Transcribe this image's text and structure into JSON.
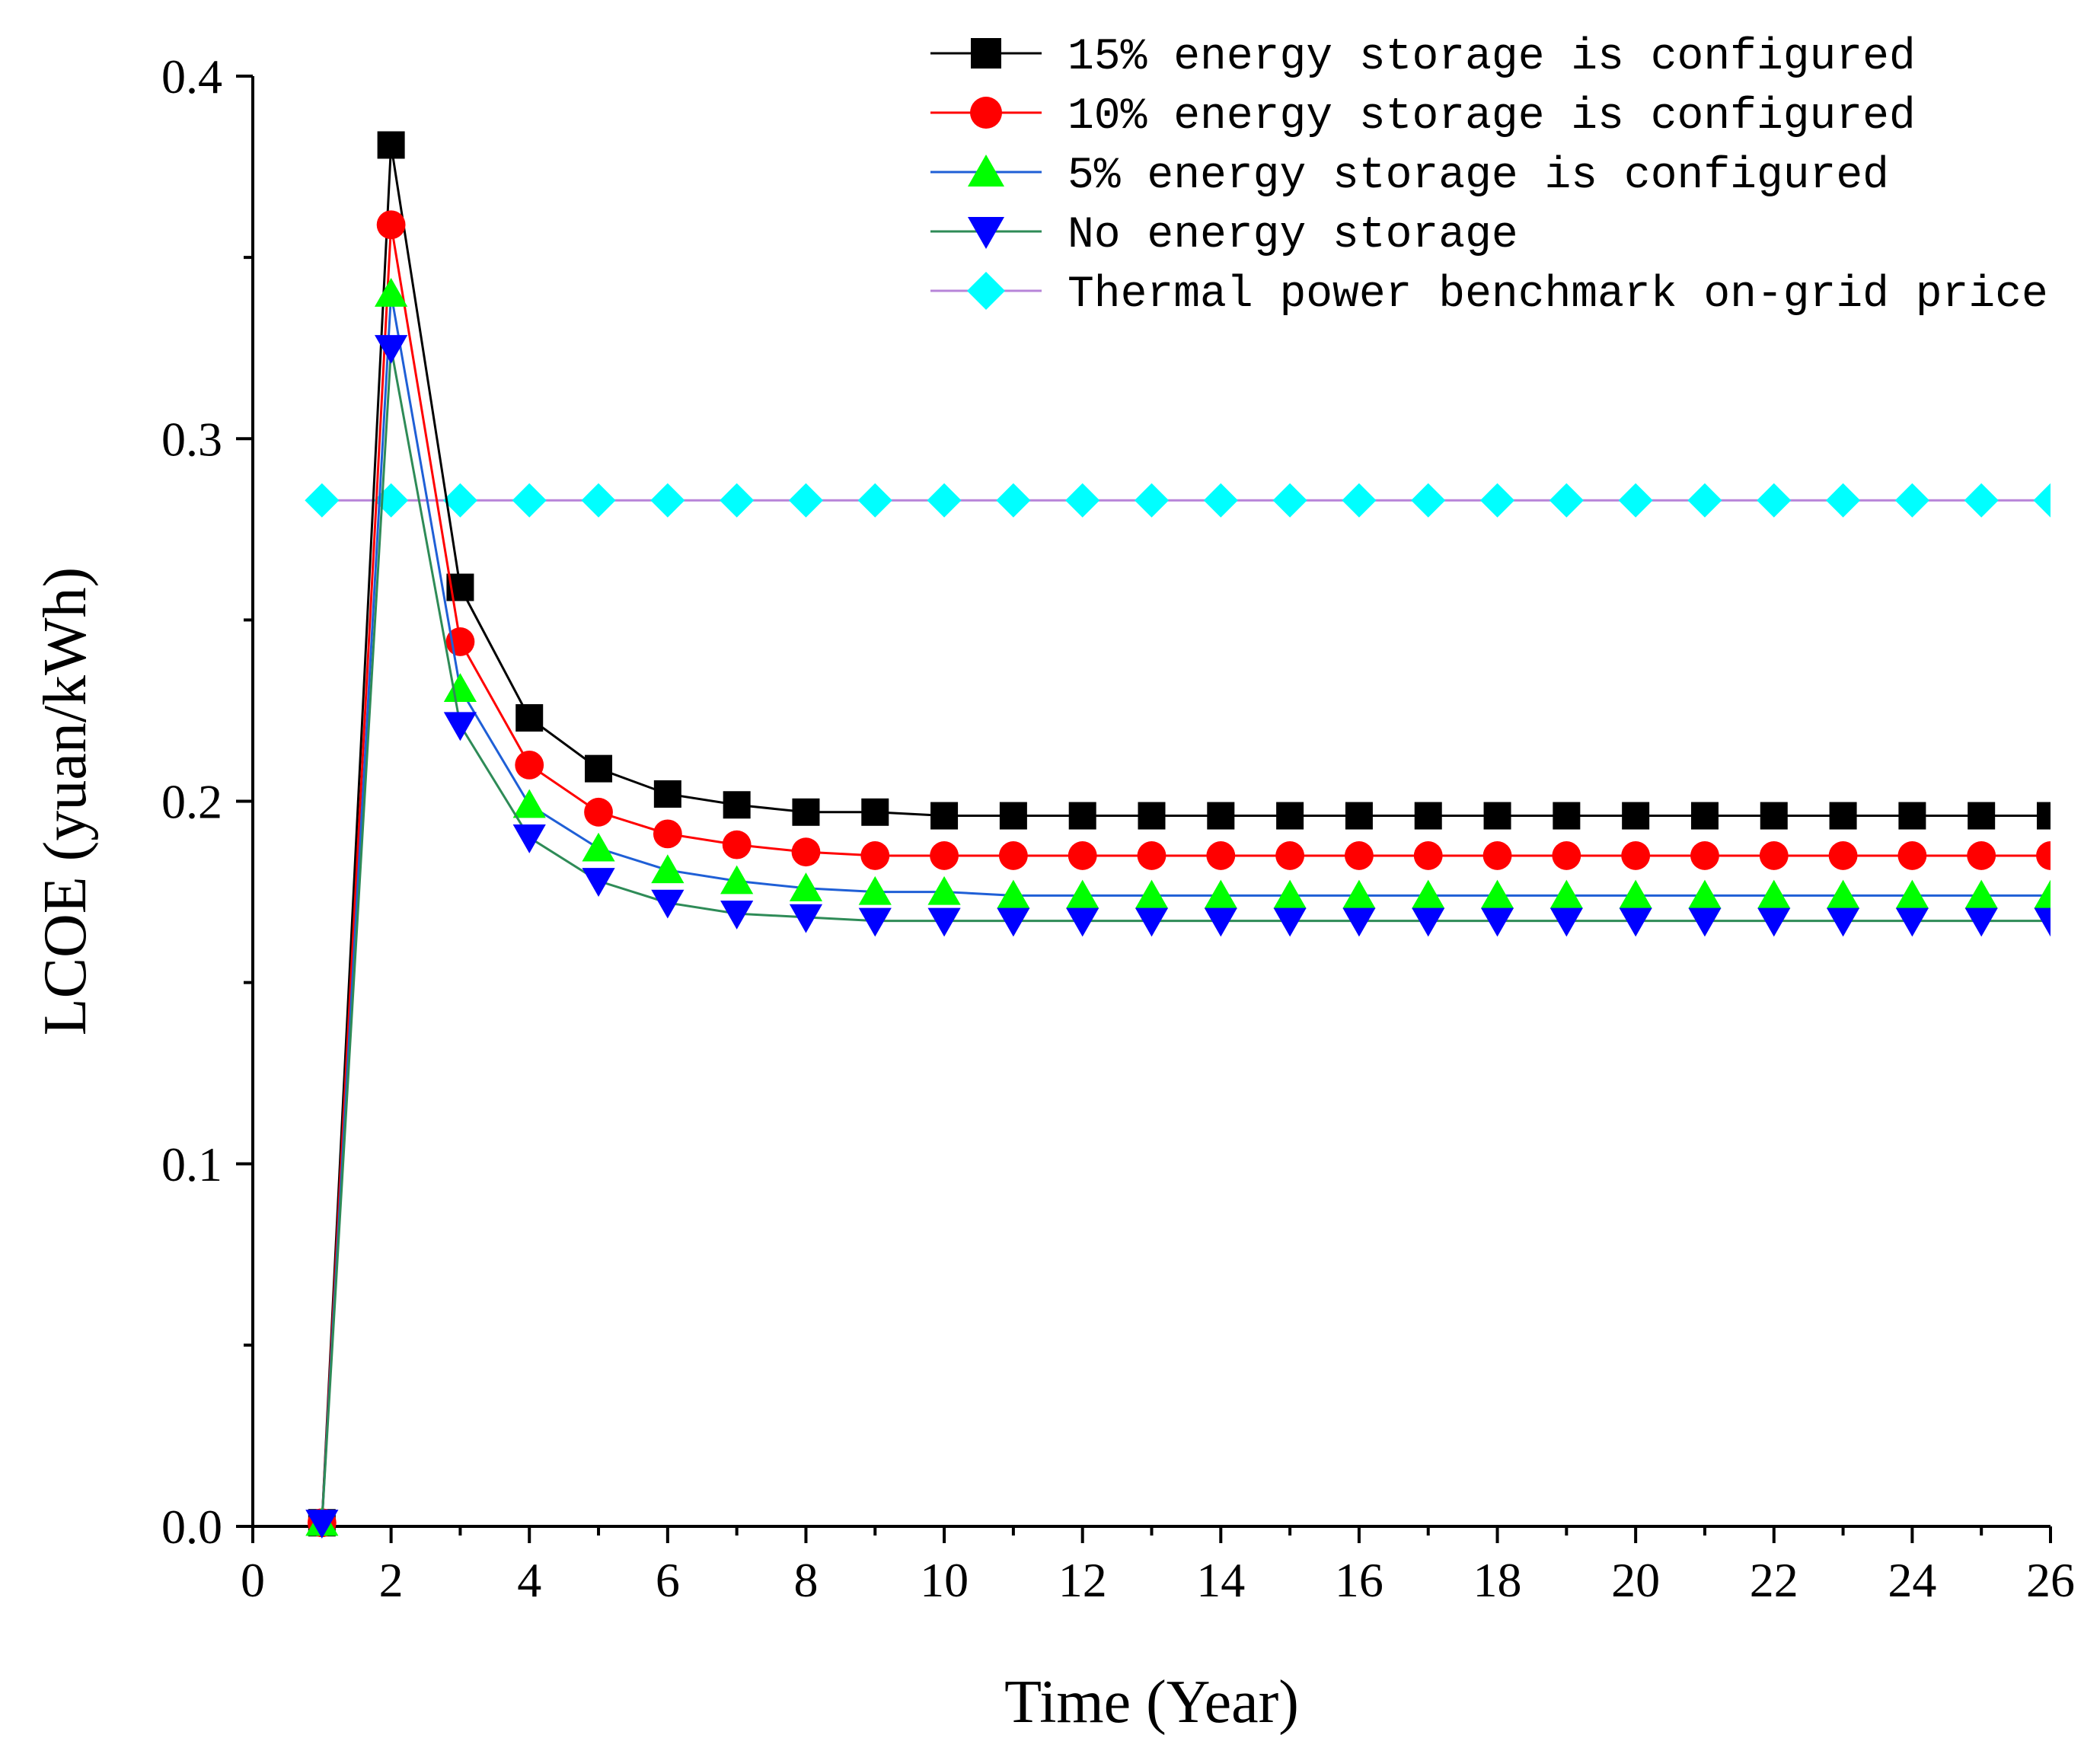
{
  "chart_data": {
    "type": "line",
    "xlabel": "Time (Year)",
    "ylabel": "LCOE (yuan/kWh)",
    "xlim": [
      0,
      26
    ],
    "ylim": [
      0,
      0.4
    ],
    "x_major_ticks": [
      0,
      2,
      4,
      6,
      8,
      10,
      12,
      14,
      16,
      18,
      20,
      22,
      24,
      26
    ],
    "x_minor_ticks": [
      1,
      3,
      5,
      7,
      9,
      11,
      13,
      15,
      17,
      19,
      21,
      23,
      25
    ],
    "y_major_ticks": [
      0.0,
      0.1,
      0.2,
      0.3,
      0.4
    ],
    "y_tick_labels": [
      "0.0",
      "0.1",
      "0.2",
      "0.3",
      "0.4"
    ],
    "y_minor_ticks": [
      0.05,
      0.15,
      0.25,
      0.35
    ],
    "legend_position": "top-right",
    "x": [
      1,
      2,
      3,
      4,
      5,
      6,
      7,
      8,
      9,
      10,
      11,
      12,
      13,
      14,
      15,
      16,
      17,
      18,
      19,
      20,
      21,
      22,
      23,
      24,
      25,
      26
    ],
    "series": [
      {
        "name": "15% energy storage is configured",
        "marker": "square",
        "marker_color": "#000000",
        "line_color": "#000000",
        "values": [
          0.001,
          0.381,
          0.259,
          0.223,
          0.209,
          0.202,
          0.199,
          0.197,
          0.197,
          0.196,
          0.196,
          0.196,
          0.196,
          0.196,
          0.196,
          0.196,
          0.196,
          0.196,
          0.196,
          0.196,
          0.196,
          0.196,
          0.196,
          0.196,
          0.196,
          0.196
        ]
      },
      {
        "name": "10% energy storage is configured",
        "marker": "circle",
        "marker_color": "#ff0000",
        "line_color": "#ff0000",
        "values": [
          0.001,
          0.359,
          0.244,
          0.21,
          0.197,
          0.191,
          0.188,
          0.186,
          0.185,
          0.185,
          0.185,
          0.185,
          0.185,
          0.185,
          0.185,
          0.185,
          0.185,
          0.185,
          0.185,
          0.185,
          0.185,
          0.185,
          0.185,
          0.185,
          0.185,
          0.185
        ]
      },
      {
        "name": "5% energy storage is configured",
        "marker": "triangle-up",
        "marker_color": "#00ff00",
        "line_color": "#1f5fd6",
        "values": [
          0.001,
          0.34,
          0.231,
          0.199,
          0.187,
          0.181,
          0.178,
          0.176,
          0.175,
          0.175,
          0.174,
          0.174,
          0.174,
          0.174,
          0.174,
          0.174,
          0.174,
          0.174,
          0.174,
          0.174,
          0.174,
          0.174,
          0.174,
          0.174,
          0.174,
          0.174
        ]
      },
      {
        "name": "No energy storage",
        "marker": "triangle-down",
        "marker_color": "#0000ff",
        "line_color": "#2e8b57",
        "values": [
          0.001,
          0.325,
          0.221,
          0.19,
          0.178,
          0.172,
          0.169,
          0.168,
          0.167,
          0.167,
          0.167,
          0.167,
          0.167,
          0.167,
          0.167,
          0.167,
          0.167,
          0.167,
          0.167,
          0.167,
          0.167,
          0.167,
          0.167,
          0.167,
          0.167,
          0.167
        ]
      },
      {
        "name": "Thermal power benchmark on-grid price",
        "marker": "diamond",
        "marker_color": "#00ffff",
        "line_color": "#b784d8",
        "values": [
          0.283,
          0.283,
          0.283,
          0.283,
          0.283,
          0.283,
          0.283,
          0.283,
          0.283,
          0.283,
          0.283,
          0.283,
          0.283,
          0.283,
          0.283,
          0.283,
          0.283,
          0.283,
          0.283,
          0.283,
          0.283,
          0.283,
          0.283,
          0.283,
          0.283,
          0.283
        ]
      }
    ]
  }
}
